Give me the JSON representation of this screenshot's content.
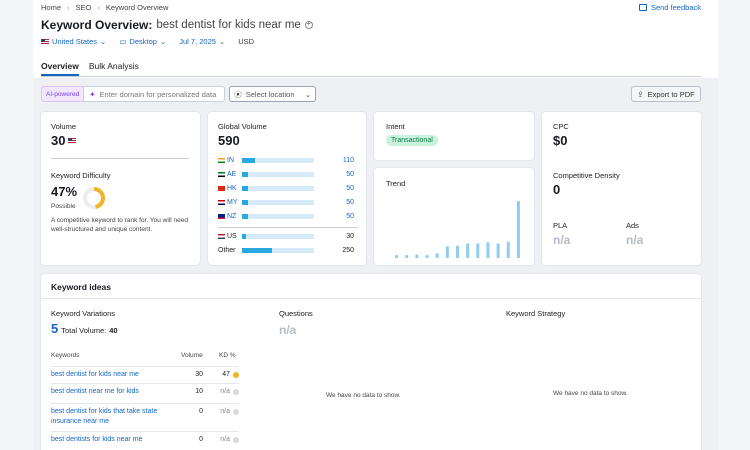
{
  "breadcrumb": [
    "Home",
    "SEO",
    "Keyword Overview"
  ],
  "feedback_label": "Send feedback",
  "title": {
    "prefix": "Keyword Overview:",
    "keyword": "best dentist for kids near me"
  },
  "filters": {
    "country": "United States",
    "device": "Desktop",
    "date": "Jul 7, 2025",
    "currency": "USD"
  },
  "tabs": [
    "Overview",
    "Bulk Analysis"
  ],
  "toolbar": {
    "ai_label": "AI-powered",
    "domain_placeholder": "Enter domain for personalized data",
    "location_placeholder": "Select location",
    "export_label": "Export to PDF"
  },
  "volume": {
    "label": "Volume",
    "value": "30"
  },
  "difficulty": {
    "label": "Keyword Difficulty",
    "value": "47%",
    "level": "Possible",
    "percent": 47,
    "note": "A competitive keyword to rank for. You will need well-structured and unique content."
  },
  "global_volume": {
    "label": "Global Volume",
    "value": "590",
    "rows": [
      {
        "code": "IN",
        "value": "110",
        "share": 0.18
      },
      {
        "code": "AE",
        "value": "50",
        "share": 0.08
      },
      {
        "code": "HK",
        "value": "50",
        "share": 0.08
      },
      {
        "code": "MY",
        "value": "50",
        "share": 0.08
      },
      {
        "code": "NZ",
        "value": "50",
        "share": 0.08
      }
    ],
    "us": {
      "code": "US",
      "value": "30",
      "share": 0.05
    },
    "other": {
      "code": "Other",
      "value": "250",
      "share": 0.42
    }
  },
  "intent": {
    "label": "Intent",
    "value": "Transactional"
  },
  "trend": {
    "label": "Trend",
    "values": [
      0.05,
      0.05,
      0.06,
      0.05,
      0.08,
      0.2,
      0.21,
      0.25,
      0.25,
      0.27,
      0.25,
      0.28,
      0.98
    ]
  },
  "cpc": {
    "label": "CPC",
    "value": "$0"
  },
  "density": {
    "label": "Competitive Density",
    "value": "0"
  },
  "pla": {
    "label": "PLA",
    "value": "n/a"
  },
  "ads": {
    "label": "Ads",
    "value": "n/a"
  },
  "ideas": {
    "title": "Keyword ideas",
    "variations": {
      "label": "Keyword Variations",
      "count": "5",
      "total_label": "Total Volume:",
      "total": "40"
    },
    "questions": {
      "label": "Questions",
      "value": "n/a",
      "empty": "We have no data to show."
    },
    "strategy": {
      "label": "Keyword Strategy",
      "empty": "We have no data to show."
    },
    "headers": {
      "keywords": "Keywords",
      "volume": "Volume",
      "kd": "KD %"
    },
    "rows": [
      {
        "keyword": "best dentist for kids near me",
        "volume": "30",
        "kd": "47",
        "dot": "#f0b429"
      },
      {
        "keyword": "best dentist near me for kids",
        "volume": "10",
        "kd": "n/a",
        "dot": "#d6d9e0"
      },
      {
        "keyword": "best dentist for kids that take state insurance near me",
        "volume": "0",
        "kd": "n/a",
        "dot": "#d6d9e0"
      },
      {
        "keyword": "best dentists for kids near me",
        "volume": "0",
        "kd": "n/a",
        "dot": "#d6d9e0"
      }
    ]
  },
  "colors": {
    "accent": "#1565c0",
    "bar": "#29a8e0",
    "trend": "#8fcdee",
    "difficulty_ring": "#f0b429"
  }
}
